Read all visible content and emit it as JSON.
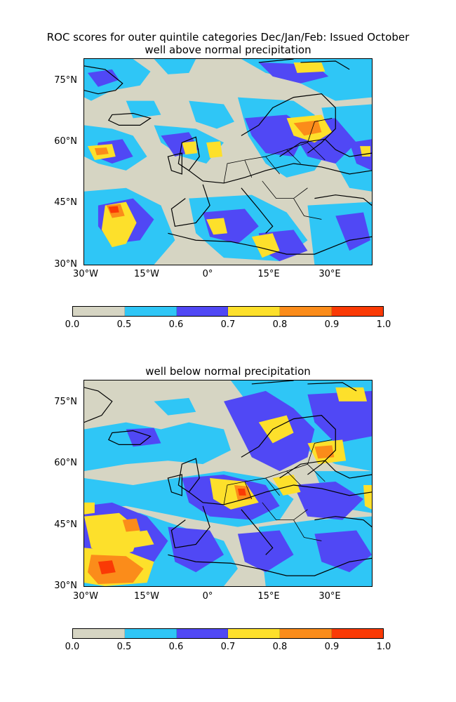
{
  "figure": {
    "title": "ROC scores for outer quintile categories Dec/Jan/Feb: Issued October"
  },
  "panels": [
    {
      "subtitle": "well above normal precipitation",
      "lat_labels": [
        "75°N",
        "60°N",
        "45°N",
        "30°N"
      ],
      "lon_labels": [
        "30°W",
        "15°W",
        "0°",
        "15°E",
        "30°E"
      ]
    },
    {
      "subtitle": "well below normal precipitation",
      "lat_labels": [
        "75°N",
        "60°N",
        "45°N",
        "30°N"
      ],
      "lon_labels": [
        "30°W",
        "15°W",
        "0°",
        "15°E",
        "30°E"
      ]
    }
  ],
  "colorbar": {
    "ticks": [
      "0.0",
      "0.5",
      "0.6",
      "0.7",
      "0.8",
      "0.9",
      "1.0"
    ],
    "colors": [
      "#d6d5c3",
      "#2fc6f6",
      "#5048f5",
      "#fde02b",
      "#fb8c1a",
      "#fa3a05"
    ]
  },
  "chart_data": {
    "type": "heatmap",
    "map_extent": {
      "lon": [
        -30,
        41
      ],
      "lat": [
        30,
        81
      ]
    },
    "levels": [
      0.0,
      0.5,
      0.6,
      0.7,
      0.8,
      0.9,
      1.0
    ]
  }
}
